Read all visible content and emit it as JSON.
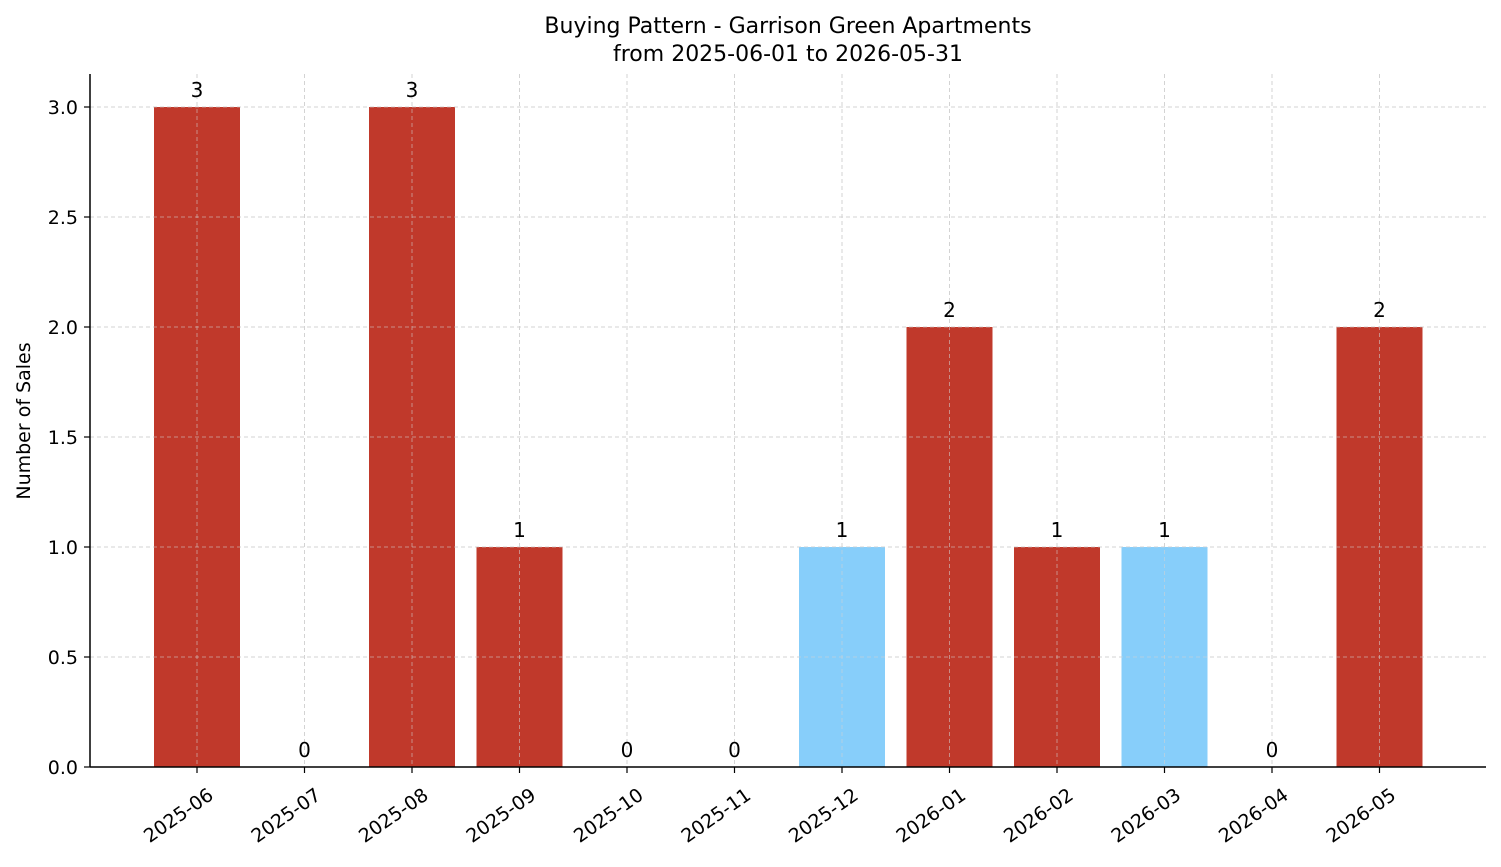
{
  "chart_data": {
    "type": "bar",
    "title": "Buying Pattern - Garrison Green Apartments",
    "subtitle": "from 2025-06-01 to 2026-05-31",
    "xlabel": "",
    "ylabel": "Number of Sales",
    "categories": [
      "2025-06",
      "2025-07",
      "2025-08",
      "2025-09",
      "2025-10",
      "2025-11",
      "2025-12",
      "2026-01",
      "2026-02",
      "2026-03",
      "2026-04",
      "2026-05"
    ],
    "values": [
      3,
      0,
      3,
      1,
      0,
      0,
      1,
      2,
      1,
      1,
      0,
      2
    ],
    "bar_colors": [
      "#c0392b",
      "#c0392b",
      "#c0392b",
      "#c0392b",
      "#c0392b",
      "#c0392b",
      "#87cefa",
      "#c0392b",
      "#c0392b",
      "#87cefa",
      "#c0392b",
      "#c0392b"
    ],
    "data_labels": [
      "3",
      "0",
      "3",
      "1",
      "0",
      "0",
      "1",
      "2",
      "1",
      "1",
      "0",
      "2"
    ],
    "ylim": [
      0,
      3.15
    ],
    "yticks": [
      0,
      0.5,
      1,
      1.5,
      2,
      2.5,
      3
    ],
    "ytick_labels": [
      "0.0",
      "0.5",
      "1.0",
      "1.5",
      "2.0",
      "2.5",
      "3.0"
    ],
    "grid": true,
    "legend": "none"
  }
}
